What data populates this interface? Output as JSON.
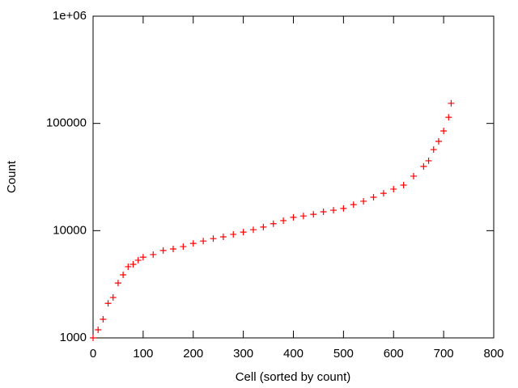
{
  "chart_data": {
    "type": "scatter",
    "x_label": "Cell (sorted by count)",
    "y_label": "Count",
    "log_y": true,
    "color": "#ff0000",
    "x": [
      0,
      10,
      20,
      30,
      40,
      50,
      60,
      70,
      80,
      90,
      100,
      120,
      140,
      160,
      180,
      200,
      220,
      240,
      260,
      280,
      300,
      320,
      340,
      360,
      380,
      400,
      420,
      440,
      460,
      480,
      500,
      520,
      540,
      560,
      580,
      600,
      620,
      640,
      660,
      670,
      680,
      690,
      700,
      710,
      715
    ],
    "values": [
      1000,
      1190,
      1490,
      2100,
      2380,
      3250,
      3870,
      4610,
      4850,
      5300,
      5660,
      5980,
      6530,
      6750,
      7100,
      7600,
      8000,
      8430,
      8750,
      9230,
      9700,
      10200,
      10800,
      11600,
      12400,
      13300,
      13700,
      14200,
      15000,
      15500,
      16100,
      17500,
      18800,
      20500,
      22300,
      24400,
      26600,
      32200,
      39700,
      44800,
      57000,
      68000,
      85000,
      114000,
      154000
    ],
    "xlim": [
      0,
      800
    ],
    "xticks": [
      0,
      100,
      200,
      300,
      400,
      500,
      600,
      700,
      800
    ],
    "ylim": [
      1000,
      1000000
    ],
    "yticks": [
      1000,
      10000,
      100000,
      {
        "value": 1000000,
        "label": "1e+06"
      }
    ]
  }
}
